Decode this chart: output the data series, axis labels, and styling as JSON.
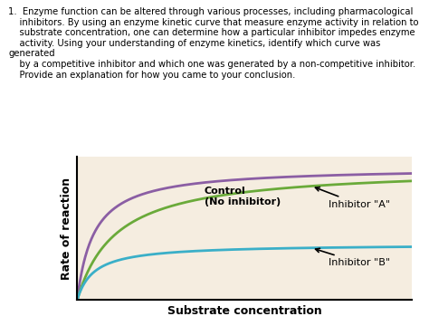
{
  "title_text": "1.   Enzyme function can be altered through various processes, including pharmacological\n     inhibitors. By using an enzyme kinetic curve that measure enzyme activity in relation to\n     substrate concentration, one can determine how a particular inhibitor impedes enzyme\n     activity. Using your understanding of enzyme kinetics, identify which curve was generated\n     by a competitive inhibitor and which one was generated by a non-competitive inhibitor.\n     Provide an explanation for how you came to your conclusion.",
  "xlabel": "Substrate concentration",
  "ylabel": "Rate of reaction",
  "bg_color": "#f5ede0",
  "outer_bg": "#ffffff",
  "control_color": "#8B5EA4",
  "inhibitor_a_color": "#6aaa3a",
  "inhibitor_b_color": "#3aafc8",
  "control_label": "Control\n(No inhibitor)",
  "inhibitor_a_label": "Inhibitor \"A\"",
  "inhibitor_b_label": "Inhibitor \"B\"",
  "vmax_control": 1.0,
  "km_control": 0.15,
  "vmax_a": 1.0,
  "km_a": 0.35,
  "vmax_b": 0.42,
  "km_b": 0.15,
  "x_max": 3.0
}
